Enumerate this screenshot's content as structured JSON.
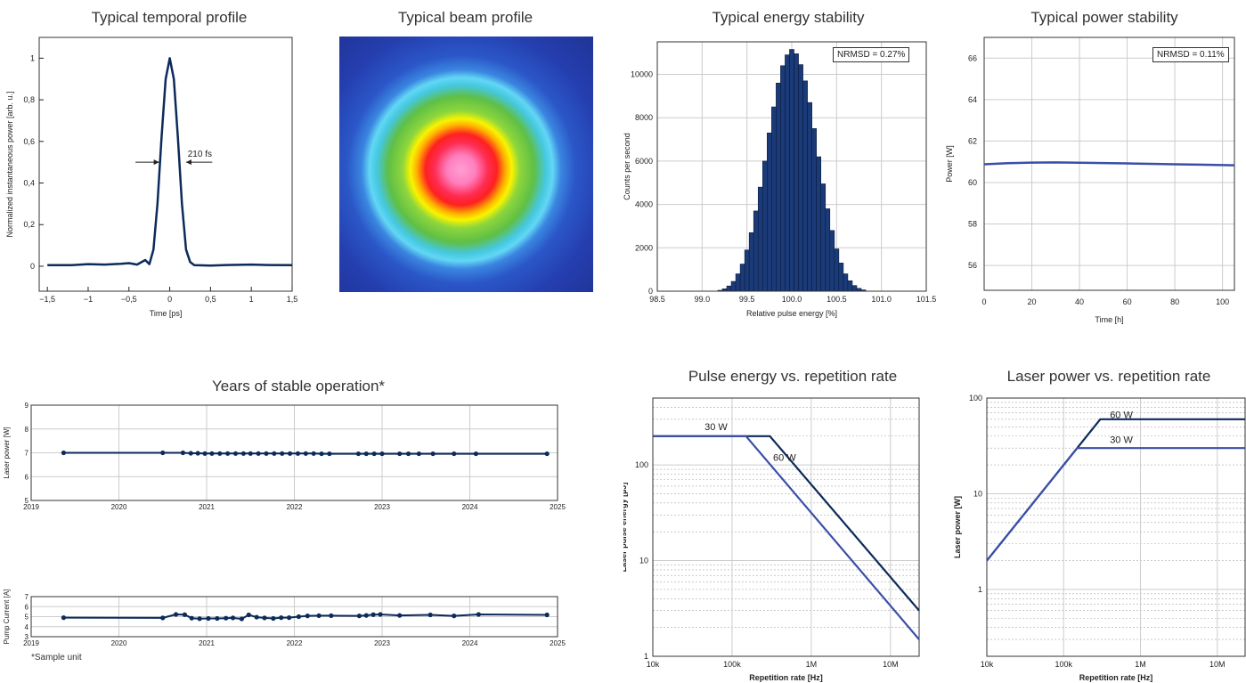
{
  "colors": {
    "dark": "#0c2a5a",
    "mid": "#3a4fa8",
    "bar": "#1b3b78",
    "grid": "#cccccc"
  },
  "titles": {
    "temporal": "Typical temporal profile",
    "beam": "Typical beam profile",
    "energy": "Typical energy stability",
    "power": "Typical power stability",
    "years": "Years of stable operation*",
    "pe_rep": "Pulse energy vs. repetition rate",
    "lp_rep": "Laser power vs. repetition rate"
  },
  "footnote": "*Sample unit",
  "chart_data": [
    {
      "id": "temporal",
      "type": "line",
      "title": "Typical temporal profile",
      "xlabel": "Time [ps]",
      "ylabel": "Normalized instantaneous power [arb. u.]",
      "xlim": [
        -1.6,
        1.5
      ],
      "ylim": [
        -0.12,
        1.1
      ],
      "xticks": [
        -1.5,
        -1,
        -0.5,
        0,
        0.5,
        1,
        1.5
      ],
      "xtick_labels": [
        "−1,5",
        "−1",
        "−0,5",
        "0",
        "0,5",
        "1",
        "1,5"
      ],
      "yticks": [
        0,
        0.2,
        0.4,
        0.6,
        0.8,
        1
      ],
      "ytick_labels": [
        "0",
        "0,2",
        "0,4",
        "0,6",
        "0,8",
        "1"
      ],
      "annotation": "210 fs",
      "x": [
        -1.5,
        -1.2,
        -1.0,
        -0.8,
        -0.6,
        -0.5,
        -0.4,
        -0.3,
        -0.25,
        -0.2,
        -0.15,
        -0.1,
        -0.05,
        0,
        0.05,
        0.1,
        0.15,
        0.2,
        0.25,
        0.3,
        0.5,
        0.7,
        1.0,
        1.2,
        1.5
      ],
      "y": [
        0.005,
        0.005,
        0.01,
        0.008,
        0.012,
        0.015,
        0.008,
        0.03,
        0.01,
        0.08,
        0.3,
        0.62,
        0.9,
        1.0,
        0.9,
        0.62,
        0.3,
        0.08,
        0.02,
        0.005,
        0.003,
        0.006,
        0.008,
        0.006,
        0.005
      ]
    },
    {
      "id": "energy",
      "type": "bar",
      "title": "Typical energy stability",
      "xlabel": "Relative pulse energy [%]",
      "ylabel": "Counts per second",
      "xlim": [
        98.5,
        101.5
      ],
      "ylim": [
        0,
        11500
      ],
      "xticks": [
        98.5,
        99.0,
        99.5,
        100.0,
        100.5,
        101.0,
        101.5
      ],
      "xtick_labels": [
        "98.5",
        "99.0",
        "99.5",
        "100.0",
        "100.5",
        "101.0",
        "101.5"
      ],
      "yticks": [
        0,
        2000,
        4000,
        6000,
        8000,
        10000
      ],
      "ytick_labels": [
        "0",
        "2000",
        "4000",
        "6000",
        "8000",
        "10000"
      ],
      "annotation": "NRMSD = 0.27%",
      "bin_centers": [
        99.2,
        99.25,
        99.3,
        99.35,
        99.4,
        99.45,
        99.5,
        99.55,
        99.6,
        99.65,
        99.7,
        99.75,
        99.8,
        99.85,
        99.9,
        99.95,
        100.0,
        100.05,
        100.1,
        100.15,
        100.2,
        100.25,
        100.3,
        100.35,
        100.4,
        100.45,
        100.5,
        100.55,
        100.6,
        100.65,
        100.7,
        100.75,
        100.8
      ],
      "values": [
        40,
        110,
        240,
        450,
        800,
        1250,
        1900,
        2700,
        3700,
        4800,
        6000,
        7300,
        8500,
        9600,
        10400,
        10900,
        11150,
        10950,
        10450,
        9700,
        8700,
        7500,
        6200,
        4950,
        3800,
        2800,
        1950,
        1300,
        800,
        480,
        260,
        130,
        60
      ]
    },
    {
      "id": "power",
      "type": "line",
      "title": "Typical power stability",
      "xlabel": "Time [h]",
      "ylabel": "Power [W]",
      "xlim": [
        0,
        105
      ],
      "ylim": [
        54.8,
        67
      ],
      "xticks": [
        0,
        20,
        40,
        60,
        80,
        100
      ],
      "xtick_labels": [
        "0",
        "20",
        "40",
        "60",
        "80",
        "100"
      ],
      "yticks": [
        56,
        58,
        60,
        62,
        64,
        66
      ],
      "ytick_labels": [
        "56",
        "58",
        "60",
        "62",
        "64",
        "66"
      ],
      "annotation": "NRMSD = 0.11%",
      "x": [
        0,
        10,
        20,
        30,
        40,
        50,
        60,
        70,
        80,
        90,
        100,
        105
      ],
      "y": [
        60.88,
        60.93,
        60.96,
        60.97,
        60.95,
        60.94,
        60.92,
        60.9,
        60.88,
        60.86,
        60.84,
        60.83
      ]
    },
    {
      "id": "years_power",
      "type": "line",
      "title": "Years of stable operation*",
      "xlabel": "",
      "ylabel": "Laser power [W]",
      "xlim": [
        2019,
        2025
      ],
      "ylim": [
        5,
        9
      ],
      "xticks": [
        2019,
        2020,
        2021,
        2022,
        2023,
        2024,
        2025
      ],
      "xtick_labels": [
        "2019",
        "2020",
        "2021",
        "2022",
        "2023",
        "2024",
        "2025"
      ],
      "yticks": [
        5,
        6,
        7,
        8,
        9
      ],
      "ytick_labels": [
        "5",
        "6",
        "7",
        "8",
        "9"
      ],
      "x": [
        2019.37,
        2020.5,
        2020.73,
        2020.82,
        2020.9,
        2020.98,
        2021.06,
        2021.15,
        2021.24,
        2021.33,
        2021.42,
        2021.5,
        2021.59,
        2021.68,
        2021.77,
        2021.86,
        2021.95,
        2022.04,
        2022.13,
        2022.22,
        2022.31,
        2022.4,
        2022.73,
        2022.82,
        2022.91,
        2023.0,
        2023.2,
        2023.3,
        2023.42,
        2023.58,
        2023.82,
        2024.07,
        2024.88
      ],
      "y": [
        7.0,
        7.0,
        7.0,
        6.98,
        6.98,
        6.97,
        6.97,
        6.97,
        6.97,
        6.97,
        6.97,
        6.97,
        6.97,
        6.97,
        6.97,
        6.97,
        6.97,
        6.97,
        6.97,
        6.97,
        6.96,
        6.96,
        6.96,
        6.96,
        6.96,
        6.96,
        6.96,
        6.96,
        6.96,
        6.96,
        6.96,
        6.96,
        6.96
      ]
    },
    {
      "id": "years_current",
      "type": "line",
      "xlabel": "",
      "ylabel": "Pump Current [A]",
      "xlim": [
        2019,
        2025
      ],
      "ylim": [
        3,
        7
      ],
      "xticks": [
        2019,
        2020,
        2021,
        2022,
        2023,
        2024,
        2025
      ],
      "xtick_labels": [
        "2019",
        "2020",
        "2021",
        "2022",
        "2023",
        "2024",
        "2025"
      ],
      "yticks": [
        3,
        4,
        5,
        6,
        7
      ],
      "ytick_labels": [
        "3",
        "4",
        "5",
        "6",
        "7"
      ],
      "x": [
        2019.37,
        2020.5,
        2020.65,
        2020.75,
        2020.83,
        2020.92,
        2021.02,
        2021.12,
        2021.22,
        2021.3,
        2021.4,
        2021.48,
        2021.57,
        2021.66,
        2021.76,
        2021.85,
        2021.94,
        2022.05,
        2022.15,
        2022.28,
        2022.42,
        2022.74,
        2022.82,
        2022.9,
        2022.98,
        2023.2,
        2023.55,
        2023.82,
        2024.1,
        2024.88
      ],
      "y": [
        4.9,
        4.88,
        5.22,
        5.2,
        4.85,
        4.8,
        4.82,
        4.82,
        4.85,
        4.88,
        4.78,
        5.18,
        4.95,
        4.88,
        4.82,
        4.9,
        4.9,
        5.0,
        5.08,
        5.1,
        5.1,
        5.08,
        5.12,
        5.2,
        5.22,
        5.12,
        5.18,
        5.08,
        5.22,
        5.18
      ]
    },
    {
      "id": "pe_rep",
      "type": "line",
      "title": "Pulse energy vs. repetition rate",
      "xlabel": "Repetition rate [Hz]",
      "ylabel": "Laser pulse energy [µJ]",
      "xscale": "log",
      "yscale": "log",
      "xlim": [
        10000,
        23000000
      ],
      "ylim": [
        1,
        500
      ],
      "xticks": [
        10000,
        100000,
        1000000,
        10000000
      ],
      "xtick_labels": [
        "10k",
        "100k",
        "1M",
        "10M"
      ],
      "yticks": [
        1,
        10,
        100
      ],
      "ytick_labels": [
        "1",
        "10",
        "100"
      ],
      "series": [
        {
          "name": "60 W",
          "x": [
            10000,
            300000,
            23000000
          ],
          "y": [
            200,
            200,
            3
          ]
        },
        {
          "name": "30 W",
          "x": [
            10000,
            150000,
            23000000
          ],
          "y": [
            200,
            200,
            1.5
          ]
        }
      ]
    },
    {
      "id": "lp_rep",
      "type": "line",
      "title": "Laser power vs. repetition rate",
      "xlabel": "Repetition rate [Hz]",
      "ylabel": "Laser power [W]",
      "xscale": "log",
      "yscale": "log",
      "xlim": [
        10000,
        23000000
      ],
      "ylim": [
        0.2,
        100
      ],
      "xticks": [
        10000,
        100000,
        1000000,
        10000000
      ],
      "xtick_labels": [
        "10k",
        "100k",
        "1M",
        "10M"
      ],
      "yticks": [
        1,
        10,
        100
      ],
      "ytick_labels": [
        "1",
        "10",
        "100"
      ],
      "series": [
        {
          "name": "60 W",
          "x": [
            10000,
            300000,
            23000000
          ],
          "y": [
            2,
            60,
            60
          ]
        },
        {
          "name": "30 W",
          "x": [
            10000,
            150000,
            23000000
          ],
          "y": [
            2,
            30,
            30
          ]
        }
      ]
    }
  ]
}
